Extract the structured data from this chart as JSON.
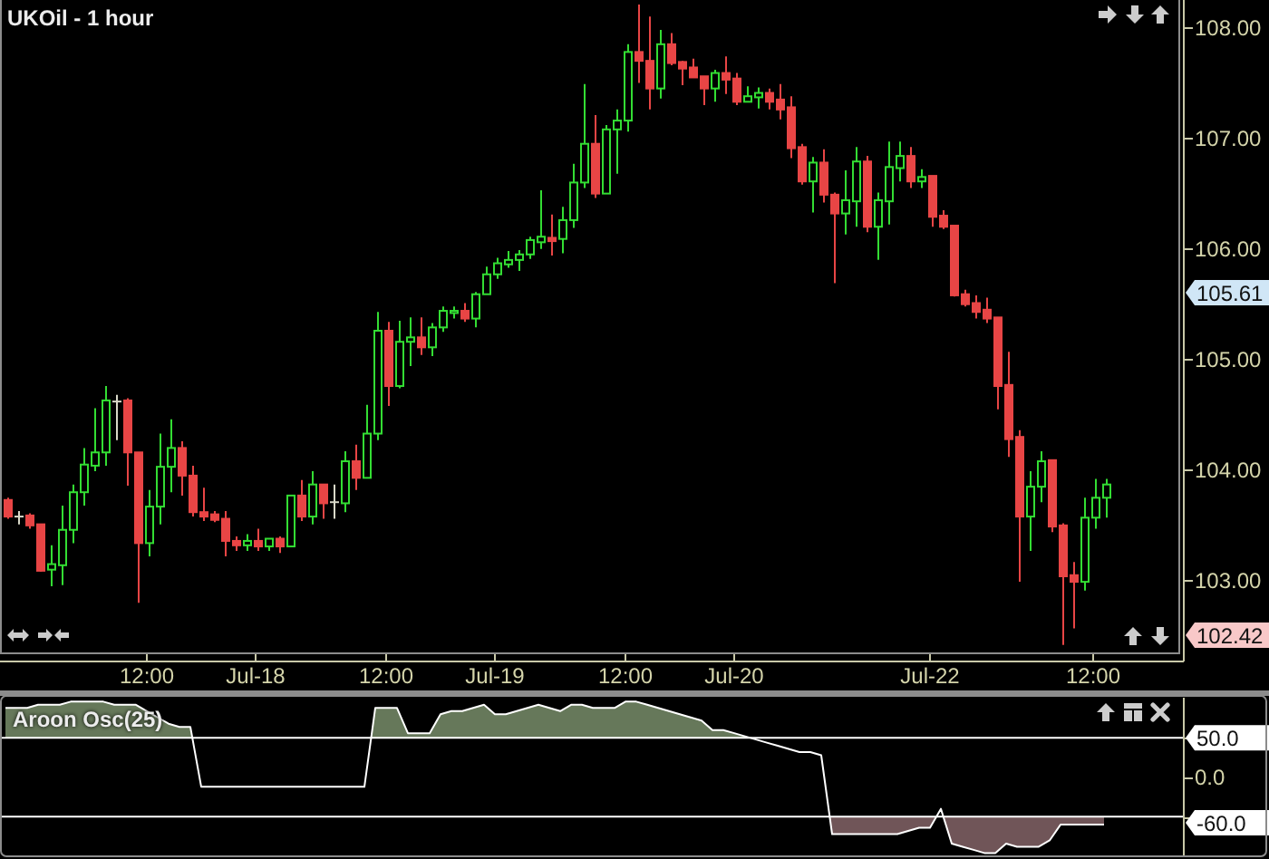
{
  "chart_data": [
    {
      "type": "candlestick",
      "title": "UKOil - 1 hour",
      "categories": [
        null,
        null,
        null,
        null,
        null,
        null,
        null,
        null,
        null,
        null,
        null,
        null,
        null,
        "12:00",
        null,
        null,
        null,
        null,
        null,
        null,
        null,
        null,
        null,
        "Jul-18",
        null,
        null,
        null,
        null,
        null,
        null,
        null,
        null,
        null,
        null,
        null,
        "12:00",
        null,
        null,
        null,
        null,
        null,
        null,
        null,
        null,
        null,
        "Jul-19",
        null,
        null,
        null,
        null,
        null,
        null,
        null,
        null,
        null,
        null,
        null,
        "12:00",
        null,
        null,
        null,
        null,
        null,
        null,
        null,
        null,
        null,
        "Jul-20",
        null,
        null,
        null,
        null,
        null,
        null,
        null,
        null,
        null,
        null,
        null,
        null,
        null,
        null,
        null,
        null,
        null,
        "Jul-22",
        null,
        null,
        null,
        null,
        null,
        null,
        null,
        null,
        null,
        null,
        null,
        null,
        null,
        null,
        "12:00",
        null
      ],
      "ohlc": [
        [
          103.73,
          103.75,
          103.56,
          103.58
        ],
        [
          103.58,
          103.63,
          103.51,
          103.58
        ],
        [
          103.59,
          103.61,
          103.47,
          103.5
        ],
        [
          103.51,
          103.51,
          103.08,
          103.09
        ],
        [
          103.1,
          103.32,
          102.95,
          103.15
        ],
        [
          103.14,
          103.68,
          102.96,
          103.46
        ],
        [
          103.46,
          103.87,
          103.34,
          103.8
        ],
        [
          103.8,
          104.2,
          103.68,
          104.05
        ],
        [
          104.04,
          104.56,
          103.99,
          104.16
        ],
        [
          104.16,
          104.76,
          104.04,
          104.63
        ],
        [
          104.62,
          104.68,
          104.27,
          104.62
        ],
        [
          104.63,
          104.65,
          103.86,
          104.16
        ],
        [
          104.16,
          104.16,
          102.8,
          103.34
        ],
        [
          103.34,
          103.82,
          103.22,
          103.67
        ],
        [
          103.67,
          104.33,
          103.51,
          104.03
        ],
        [
          104.03,
          104.46,
          103.8,
          104.2
        ],
        [
          104.2,
          104.26,
          103.77,
          103.95
        ],
        [
          103.95,
          104.04,
          103.58,
          103.62
        ],
        [
          103.62,
          103.84,
          103.54,
          103.58
        ],
        [
          103.6,
          103.63,
          103.53,
          103.55
        ],
        [
          103.56,
          103.63,
          103.22,
          103.36
        ],
        [
          103.36,
          103.4,
          103.27,
          103.32
        ],
        [
          103.32,
          103.42,
          103.27,
          103.36
        ],
        [
          103.36,
          103.47,
          103.27,
          103.31
        ],
        [
          103.31,
          103.38,
          103.27,
          103.38
        ],
        [
          103.38,
          103.4,
          103.25,
          103.31
        ],
        [
          103.31,
          103.77,
          103.31,
          103.77
        ],
        [
          103.77,
          103.91,
          103.54,
          103.58
        ],
        [
          103.58,
          103.99,
          103.51,
          103.87
        ],
        [
          103.87,
          103.87,
          103.56,
          103.7
        ],
        [
          103.71,
          103.87,
          103.56,
          103.71
        ],
        [
          103.7,
          104.17,
          103.62,
          104.08
        ],
        [
          104.08,
          104.23,
          103.82,
          103.93
        ],
        [
          103.93,
          104.59,
          103.93,
          104.33
        ],
        [
          104.33,
          105.43,
          104.27,
          105.26
        ],
        [
          105.26,
          105.34,
          104.58,
          104.76
        ],
        [
          104.76,
          105.35,
          104.74,
          105.16
        ],
        [
          105.16,
          105.38,
          104.94,
          105.2
        ],
        [
          105.2,
          105.38,
          105.04,
          105.11
        ],
        [
          105.11,
          105.33,
          105.03,
          105.29
        ],
        [
          105.29,
          105.48,
          105.25,
          105.44
        ],
        [
          105.42,
          105.48,
          105.37,
          105.44
        ],
        [
          105.44,
          105.51,
          105.34,
          105.37
        ],
        [
          105.37,
          105.61,
          105.29,
          105.59
        ],
        [
          105.59,
          105.84,
          105.59,
          105.77
        ],
        [
          105.77,
          105.92,
          105.73,
          105.87
        ],
        [
          105.86,
          105.98,
          105.83,
          105.9
        ],
        [
          105.9,
          105.99,
          105.8,
          105.95
        ],
        [
          105.95,
          106.11,
          105.91,
          106.08
        ],
        [
          106.06,
          106.53,
          106.0,
          106.11
        ],
        [
          106.1,
          106.31,
          105.94,
          106.07
        ],
        [
          106.09,
          106.38,
          105.96,
          106.26
        ],
        [
          106.26,
          106.77,
          106.19,
          106.6
        ],
        [
          106.6,
          107.49,
          106.55,
          106.95
        ],
        [
          106.95,
          107.21,
          106.46,
          106.5
        ],
        [
          106.5,
          107.12,
          106.5,
          107.08
        ],
        [
          107.08,
          107.26,
          106.68,
          107.16
        ],
        [
          107.16,
          107.85,
          107.06,
          107.78
        ],
        [
          107.78,
          108.21,
          107.5,
          107.7
        ],
        [
          107.7,
          108.1,
          107.26,
          107.45
        ],
        [
          107.45,
          107.98,
          107.36,
          107.85
        ],
        [
          107.85,
          107.95,
          107.66,
          107.68
        ],
        [
          107.69,
          107.7,
          107.48,
          107.63
        ],
        [
          107.64,
          107.72,
          107.55,
          107.55
        ],
        [
          107.56,
          107.56,
          107.3,
          107.45
        ],
        [
          107.45,
          107.62,
          107.33,
          107.59
        ],
        [
          107.59,
          107.74,
          107.4,
          107.53
        ],
        [
          107.54,
          107.59,
          107.3,
          107.33
        ],
        [
          107.33,
          107.47,
          107.33,
          107.38
        ],
        [
          107.37,
          107.46,
          107.27,
          107.41
        ],
        [
          107.41,
          107.45,
          107.26,
          107.33
        ],
        [
          107.35,
          107.49,
          107.17,
          107.26
        ],
        [
          107.28,
          107.38,
          106.82,
          106.91
        ],
        [
          106.92,
          106.95,
          106.58,
          106.61
        ],
        [
          106.61,
          106.83,
          106.33,
          106.78
        ],
        [
          106.78,
          106.9,
          106.42,
          106.49
        ],
        [
          106.49,
          106.51,
          105.69,
          106.32
        ],
        [
          106.32,
          106.71,
          106.13,
          106.44
        ],
        [
          106.43,
          106.92,
          106.2,
          106.79
        ],
        [
          106.79,
          106.84,
          106.15,
          106.2
        ],
        [
          106.2,
          106.51,
          105.9,
          106.44
        ],
        [
          106.43,
          106.97,
          106.22,
          106.74
        ],
        [
          106.73,
          106.97,
          106.61,
          106.84
        ],
        [
          106.84,
          106.92,
          106.55,
          106.61
        ],
        [
          106.61,
          106.72,
          106.55,
          106.65
        ],
        [
          106.66,
          106.66,
          106.2,
          106.29
        ],
        [
          106.3,
          106.35,
          106.18,
          106.2
        ],
        [
          106.21,
          106.21,
          105.57,
          105.58
        ],
        [
          105.59,
          105.63,
          105.48,
          105.5
        ],
        [
          105.51,
          105.58,
          105.37,
          105.43
        ],
        [
          105.45,
          105.56,
          105.33,
          105.37
        ],
        [
          105.38,
          105.38,
          104.55,
          104.76
        ],
        [
          104.77,
          105.07,
          104.12,
          104.28
        ],
        [
          104.3,
          104.36,
          102.99,
          103.58
        ],
        [
          103.58,
          103.99,
          103.27,
          103.85
        ],
        [
          103.85,
          104.17,
          103.71,
          104.08
        ],
        [
          104.09,
          104.09,
          103.44,
          103.49
        ],
        [
          103.5,
          103.52,
          102.42,
          103.04
        ],
        [
          103.05,
          103.17,
          102.57,
          102.99
        ],
        [
          102.99,
          103.75,
          102.91,
          103.57
        ],
        [
          103.57,
          103.92,
          103.47,
          103.75
        ],
        [
          103.75,
          103.92,
          103.57,
          103.87
        ]
      ],
      "colors": [
        "#e84545",
        "#d8d8c8",
        "#e84545",
        "#e84545",
        "#33dd33",
        "#33dd33",
        "#33dd33",
        "#33dd33",
        "#33dd33",
        "#33dd33",
        "#d8d8c8",
        "#e84545",
        "#e84545",
        "#33dd33",
        "#33dd33",
        "#33dd33",
        "#e84545",
        "#e84545",
        "#e84545",
        "#e84545",
        "#e84545",
        "#e84545",
        "#33dd33",
        "#e84545",
        "#33dd33",
        "#e84545",
        "#33dd33",
        "#e84545",
        "#33dd33",
        "#e84545",
        "#d8d8c8",
        "#33dd33",
        "#e84545",
        "#33dd33",
        "#33dd33",
        "#e84545",
        "#33dd33",
        "#33dd33",
        "#e84545",
        "#33dd33",
        "#33dd33",
        "#33dd33",
        "#e84545",
        "#33dd33",
        "#33dd33",
        "#33dd33",
        "#33dd33",
        "#33dd33",
        "#33dd33",
        "#33dd33",
        "#e84545",
        "#33dd33",
        "#33dd33",
        "#33dd33",
        "#e84545",
        "#33dd33",
        "#33dd33",
        "#33dd33",
        "#e84545",
        "#e84545",
        "#33dd33",
        "#e84545",
        "#e84545",
        "#e84545",
        "#e84545",
        "#33dd33",
        "#e84545",
        "#e84545",
        "#33dd33",
        "#33dd33",
        "#e84545",
        "#e84545",
        "#e84545",
        "#e84545",
        "#33dd33",
        "#e84545",
        "#e84545",
        "#33dd33",
        "#33dd33",
        "#e84545",
        "#33dd33",
        "#33dd33",
        "#33dd33",
        "#e84545",
        "#33dd33",
        "#e84545",
        "#e84545",
        "#e84545",
        "#e84545",
        "#e84545",
        "#e84545",
        "#e84545",
        "#e84545",
        "#e84545",
        "#33dd33",
        "#33dd33",
        "#e84545",
        "#e84545",
        "#e84545",
        "#33dd33",
        "#33dd33",
        "#33dd33"
      ],
      "ylim": [
        102.27,
        108.25
      ],
      "yticks": [
        {
          "value": 103,
          "label": "103.00"
        },
        {
          "value": 104,
          "label": "104.00"
        },
        {
          "value": 105,
          "label": "105.00"
        },
        {
          "value": 106,
          "label": "106.00"
        },
        {
          "value": 107,
          "label": "107.00"
        },
        {
          "value": 108,
          "label": "108.00"
        }
      ],
      "annotations": [
        "105.61",
        "102.42"
      ]
    },
    {
      "type": "area",
      "title": "Aroon Osc(25)",
      "categories": [
        null,
        null,
        null,
        null,
        null,
        null,
        null,
        null,
        null,
        null,
        null,
        null,
        null,
        null,
        null,
        null,
        null,
        null,
        null,
        null,
        null,
        null,
        null,
        null,
        null,
        null,
        null,
        null,
        null,
        null,
        null,
        null,
        null,
        null,
        null,
        null,
        null,
        null,
        null,
        null,
        null,
        null,
        null,
        null,
        null,
        null,
        null,
        null,
        null,
        null,
        null,
        null,
        null,
        null,
        null,
        null,
        null,
        null,
        null,
        null,
        null,
        null,
        null,
        null,
        null,
        null,
        null,
        null,
        null,
        null,
        null,
        null,
        null,
        null,
        null,
        null,
        null,
        null,
        null,
        null,
        null,
        null,
        null,
        null,
        null,
        null,
        null,
        null,
        null,
        null,
        null,
        null,
        null,
        null,
        null,
        null,
        null,
        null,
        null,
        null,
        null,
        null
      ],
      "series": [
        {
          "color": "#ffffff",
          "values": [
            88,
            88,
            88,
            92,
            92,
            92,
            96,
            96,
            96,
            96,
            92,
            92,
            92,
            84,
            76,
            68,
            64,
            64,
            -12,
            -12,
            -12,
            -12,
            -12,
            -12,
            -12,
            -12,
            -12,
            -12,
            -12,
            -12,
            -12,
            -12,
            -12,
            -12,
            88,
            88,
            88,
            56,
            56,
            56,
            80,
            84,
            84,
            88,
            92,
            80,
            80,
            84,
            88,
            92,
            88,
            84,
            92,
            92,
            88,
            88,
            88,
            96,
            96,
            92,
            88,
            84,
            80,
            76,
            72,
            60,
            60,
            56,
            52,
            48,
            44,
            40,
            36,
            32,
            32,
            28,
            -72,
            -72,
            -72,
            -72,
            -72,
            -72,
            -72,
            -68,
            -64,
            -64,
            -40,
            -84,
            -88,
            -92,
            -96,
            -96,
            -84,
            -88,
            -88,
            -88,
            -80,
            -60,
            -60,
            -60,
            -60,
            -60
          ]
        }
      ],
      "ylim": [
        -99,
        101
      ],
      "yticks": [
        {
          "value": 50,
          "label": "50.0"
        },
        {
          "value": 0,
          "label": "0.0"
        },
        {
          "value": -50,
          "label": null
        }
      ],
      "ref_lines": [
        {
          "axis": "y",
          "value": 50,
          "color": "#ffffff"
        },
        {
          "axis": "y",
          "value": -50,
          "color": "#ffffff"
        }
      ],
      "annotations": [
        "-60.0"
      ],
      "tick_labels": "y"
    }
  ]
}
